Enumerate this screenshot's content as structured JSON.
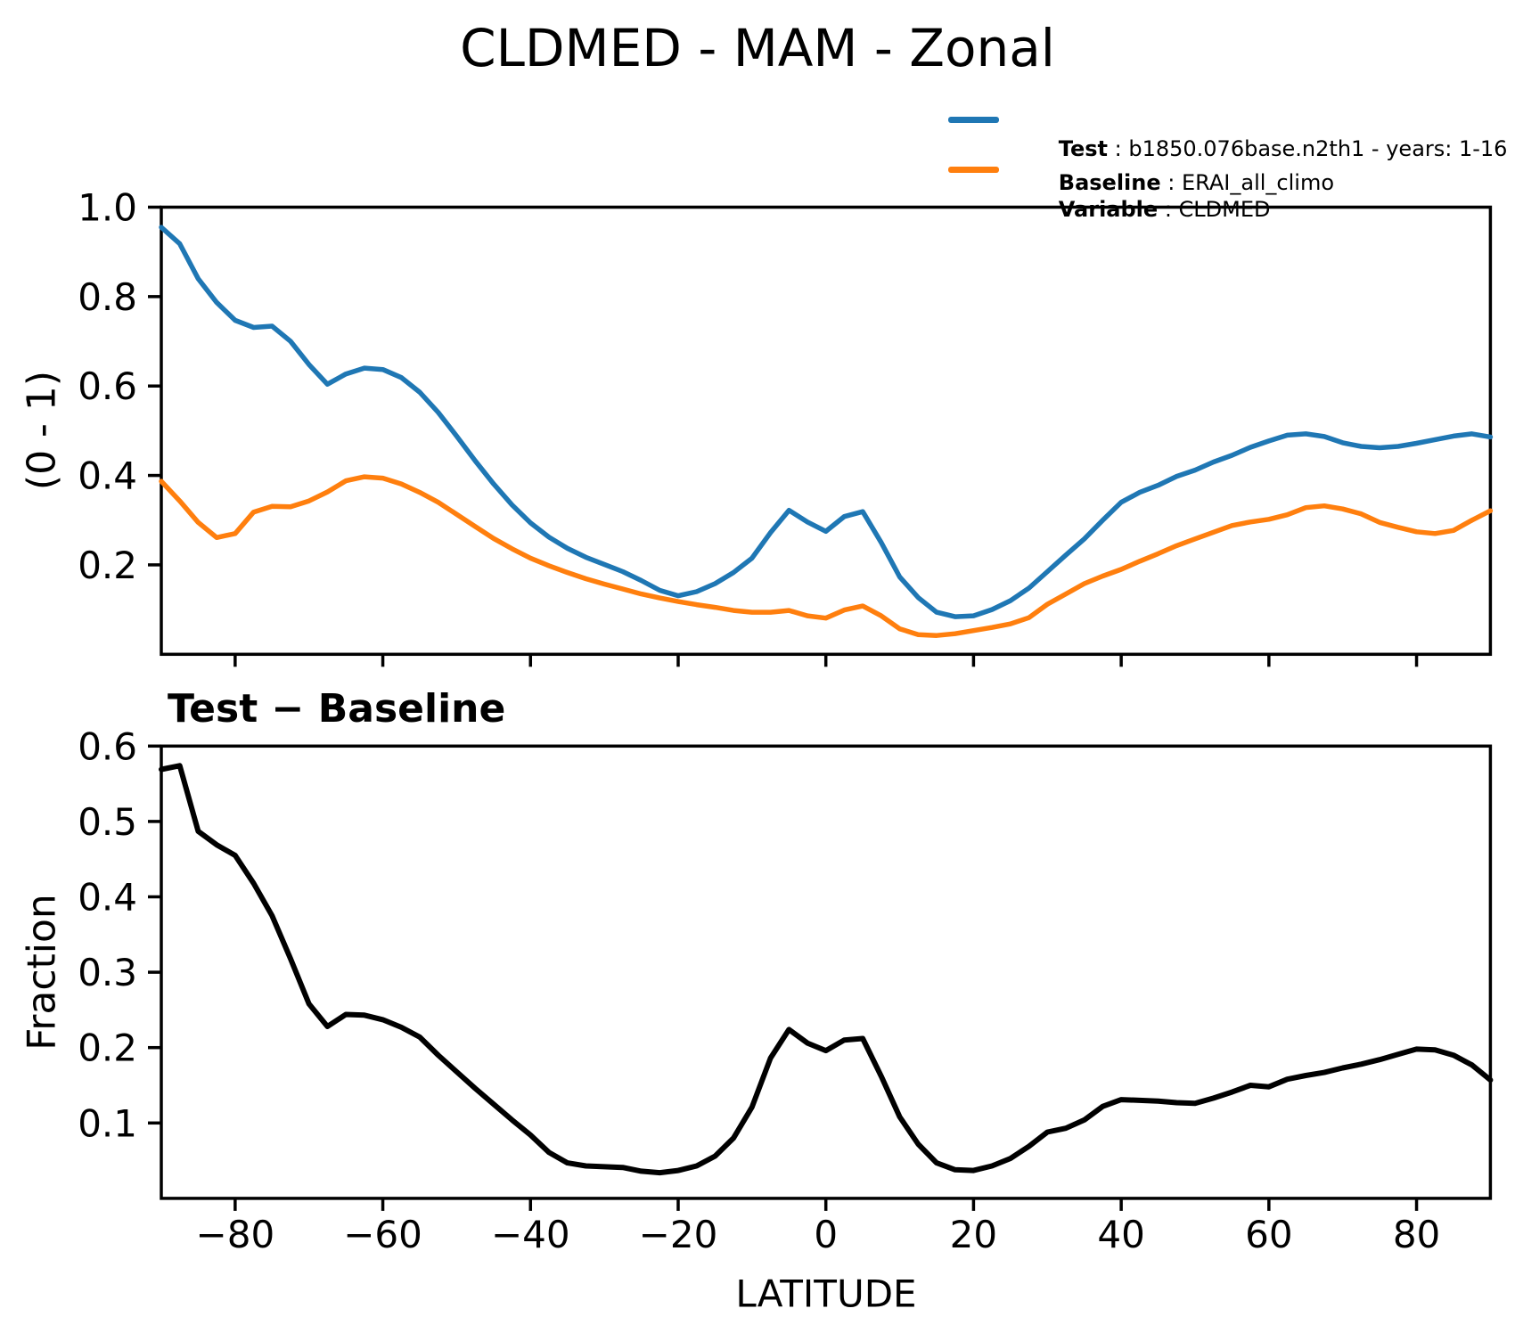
{
  "figure": {
    "title": "CLDMED - MAM - Zonal",
    "background": "#ffffff"
  },
  "chart_data": [
    {
      "type": "line",
      "panel": "top",
      "title": "",
      "xlabel": "",
      "ylabel": "(0 - 1)",
      "xlim": [
        -90,
        90
      ],
      "ylim": [
        0,
        1.0
      ],
      "grid": false,
      "yticks": [
        0.2,
        0.4,
        0.6,
        0.8,
        1.0
      ],
      "ytick_labels": [
        "0.2",
        "0.4",
        "0.6",
        "0.8",
        "1.0"
      ],
      "xticks": [
        -80,
        -60,
        -40,
        -20,
        0,
        20,
        40,
        60,
        80
      ],
      "xtick_labels": null,
      "legend_position": "above axes, upper right",
      "legend": [
        {
          "label": "Test",
          "rest": " : b1850.076base.n2th1 - years: 1-16",
          "color": "#1f77b4"
        },
        {
          "label": "Baseline",
          "rest": " : ERAI_all_climo",
          "color": "#ff7f0e"
        },
        {
          "label": "Variable",
          "rest": " : CLDMED",
          "color": null
        }
      ],
      "x": [
        -90,
        -87.5,
        -85,
        -82.5,
        -80,
        -77.5,
        -75,
        -72.5,
        -70,
        -67.5,
        -65,
        -62.5,
        -60,
        -57.5,
        -55,
        -52.5,
        -50,
        -47.5,
        -45,
        -42.5,
        -40,
        -37.5,
        -35,
        -32.5,
        -30,
        -27.5,
        -25,
        -22.5,
        -20,
        -17.5,
        -15,
        -12.5,
        -10,
        -7.5,
        -5,
        -2.5,
        0,
        2.5,
        5,
        7.5,
        10,
        12.5,
        15,
        17.5,
        20,
        22.5,
        25,
        27.5,
        30,
        32.5,
        35,
        37.5,
        40,
        42.5,
        45,
        47.5,
        50,
        52.5,
        55,
        57.5,
        60,
        62.5,
        65,
        67.5,
        70,
        72.5,
        75,
        77.5,
        80,
        82.5,
        85,
        87.5,
        90
      ],
      "series": [
        {
          "name": "Test",
          "color": "#1f77b4",
          "values": [
            0.955,
            0.918,
            0.84,
            0.787,
            0.747,
            0.731,
            0.734,
            0.7,
            0.648,
            0.604,
            0.627,
            0.64,
            0.637,
            0.619,
            0.586,
            0.541,
            0.488,
            0.433,
            0.381,
            0.334,
            0.294,
            0.262,
            0.237,
            0.217,
            0.201,
            0.185,
            0.165,
            0.143,
            0.131,
            0.14,
            0.158,
            0.183,
            0.215,
            0.272,
            0.322,
            0.296,
            0.275,
            0.308,
            0.319,
            0.25,
            0.173,
            0.127,
            0.094,
            0.084,
            0.086,
            0.1,
            0.12,
            0.148,
            0.185,
            0.222,
            0.258,
            0.3,
            0.34,
            0.362,
            0.378,
            0.398,
            0.412,
            0.43,
            0.445,
            0.463,
            0.477,
            0.49,
            0.493,
            0.487,
            0.473,
            0.465,
            0.462,
            0.465,
            0.472,
            0.48,
            0.488,
            0.493,
            0.486
          ]
        },
        {
          "name": "Baseline",
          "color": "#ff7f0e",
          "values": [
            0.387,
            0.343,
            0.295,
            0.261,
            0.27,
            0.318,
            0.331,
            0.33,
            0.343,
            0.363,
            0.388,
            0.397,
            0.394,
            0.381,
            0.362,
            0.34,
            0.313,
            0.286,
            0.259,
            0.236,
            0.215,
            0.198,
            0.183,
            0.169,
            0.157,
            0.146,
            0.135,
            0.126,
            0.118,
            0.111,
            0.105,
            0.098,
            0.094,
            0.094,
            0.098,
            0.086,
            0.081,
            0.099,
            0.108,
            0.086,
            0.057,
            0.044,
            0.042,
            0.046,
            0.053,
            0.06,
            0.068,
            0.082,
            0.112,
            0.135,
            0.158,
            0.175,
            0.19,
            0.208,
            0.225,
            0.243,
            0.258,
            0.273,
            0.288,
            0.296,
            0.302,
            0.312,
            0.328,
            0.332,
            0.325,
            0.314,
            0.295,
            0.284,
            0.274,
            0.27,
            0.277,
            0.3,
            0.321
          ]
        }
      ]
    },
    {
      "type": "line",
      "panel": "bottom",
      "title": "Test − Baseline",
      "xlabel": "LATITUDE",
      "ylabel": "Fraction",
      "xlim": [
        -90,
        90
      ],
      "ylim": [
        0,
        0.6
      ],
      "grid": false,
      "yticks": [
        0.1,
        0.2,
        0.3,
        0.4,
        0.5,
        0.6
      ],
      "ytick_labels": [
        "0.1",
        "0.2",
        "0.3",
        "0.4",
        "0.5",
        "0.6"
      ],
      "xticks": [
        -80,
        -60,
        -40,
        -20,
        0,
        20,
        40,
        60,
        80
      ],
      "xtick_labels": [
        "−80",
        "−60",
        "−40",
        "−20",
        "0",
        "20",
        "40",
        "60",
        "80"
      ],
      "x": [
        -90,
        -87.5,
        -85,
        -82.5,
        -80,
        -77.5,
        -75,
        -72.5,
        -70,
        -67.5,
        -65,
        -62.5,
        -60,
        -57.5,
        -55,
        -52.5,
        -50,
        -47.5,
        -45,
        -42.5,
        -40,
        -37.5,
        -35,
        -32.5,
        -30,
        -27.5,
        -25,
        -22.5,
        -20,
        -17.5,
        -15,
        -12.5,
        -10,
        -7.5,
        -5,
        -2.5,
        0,
        2.5,
        5,
        7.5,
        10,
        12.5,
        15,
        17.5,
        20,
        22.5,
        25,
        27.5,
        30,
        32.5,
        35,
        37.5,
        40,
        42.5,
        45,
        47.5,
        50,
        52.5,
        55,
        57.5,
        60,
        62.5,
        65,
        67.5,
        70,
        72.5,
        75,
        77.5,
        80,
        82.5,
        85,
        87.5,
        90
      ],
      "series": [
        {
          "name": "Test − Baseline",
          "color": "#000000",
          "values": [
            0.569,
            0.574,
            0.487,
            0.469,
            0.455,
            0.418,
            0.375,
            0.318,
            0.258,
            0.228,
            0.244,
            0.243,
            0.237,
            0.227,
            0.214,
            0.19,
            0.168,
            0.146,
            0.125,
            0.104,
            0.084,
            0.061,
            0.047,
            0.043,
            0.042,
            0.041,
            0.036,
            0.034,
            0.037,
            0.043,
            0.056,
            0.08,
            0.121,
            0.186,
            0.224,
            0.206,
            0.196,
            0.21,
            0.212,
            0.162,
            0.108,
            0.072,
            0.047,
            0.038,
            0.037,
            0.043,
            0.053,
            0.069,
            0.088,
            0.093,
            0.104,
            0.122,
            0.131,
            0.13,
            0.129,
            0.127,
            0.126,
            0.133,
            0.141,
            0.15,
            0.148,
            0.158,
            0.163,
            0.167,
            0.173,
            0.178,
            0.184,
            0.191,
            0.198,
            0.197,
            0.19,
            0.177,
            0.157
          ]
        }
      ]
    }
  ]
}
